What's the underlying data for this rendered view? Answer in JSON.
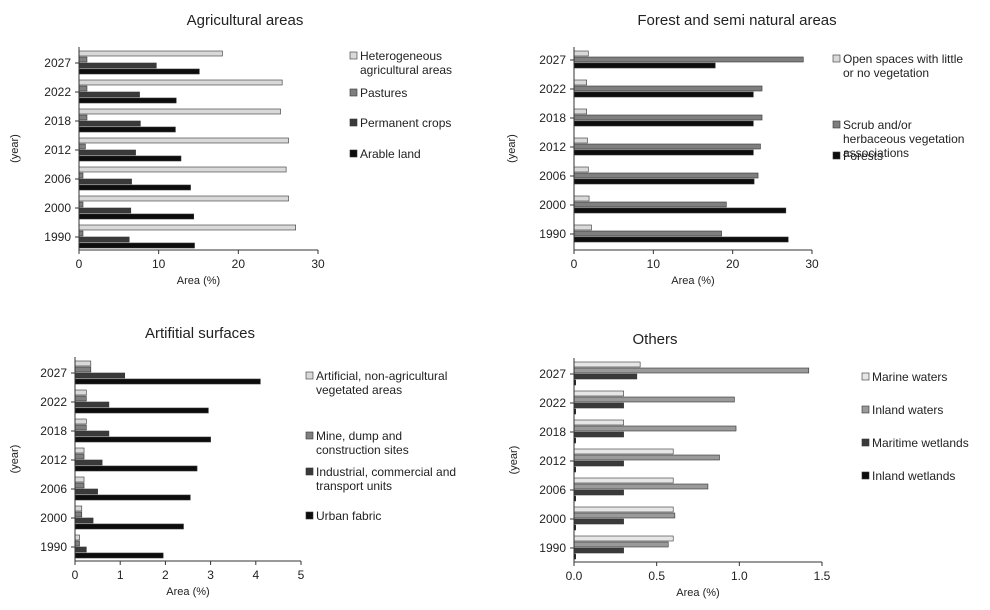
{
  "chart_data": [
    {
      "type": "bar",
      "orientation": "horizontal",
      "title": "Agricultural areas",
      "xlabel": "Area (%)",
      "ylabel": "(year)",
      "xlim": [
        0,
        30
      ],
      "xticks": [
        "0",
        "10",
        "20",
        "30"
      ],
      "categories": [
        "2027",
        "2022",
        "2018",
        "2012",
        "2006",
        "2000",
        "1990"
      ],
      "legend_position": "right",
      "grid": false,
      "series": [
        {
          "name": "Heterogeneous agricultural areas",
          "legend_lines": [
            "Heterogeneous",
            "agricultural areas"
          ],
          "color": "#d9d9d9",
          "values": [
            18.0,
            25.5,
            25.3,
            26.3,
            26.0,
            26.3,
            27.2
          ]
        },
        {
          "name": "Pastures",
          "legend_lines": [
            "Pastures"
          ],
          "color": "#7f7f7f",
          "values": [
            1.0,
            1.0,
            1.0,
            0.8,
            0.5,
            0.5,
            0.5
          ]
        },
        {
          "name": "Permanent crops",
          "legend_lines": [
            "Permanent crops"
          ],
          "color": "#3a3a3a",
          "values": [
            9.7,
            7.6,
            7.7,
            7.1,
            6.6,
            6.5,
            6.3
          ]
        },
        {
          "name": "Arable land",
          "legend_lines": [
            "Arable land"
          ],
          "color": "#0d0d0d",
          "values": [
            15.1,
            12.2,
            12.1,
            12.8,
            14.0,
            14.4,
            14.5
          ]
        }
      ]
    },
    {
      "type": "bar",
      "orientation": "horizontal",
      "title": "Forest and semi natural areas",
      "xlabel": "Area (%)",
      "ylabel": "(year)",
      "xlim": [
        0,
        30
      ],
      "xticks": [
        "0",
        "10",
        "20",
        "30"
      ],
      "categories": [
        "2027",
        "2022",
        "2018",
        "2012",
        "2006",
        "2000",
        "1990"
      ],
      "legend_position": "right",
      "grid": false,
      "series": [
        {
          "name": "Open spaces with little or no vegetation",
          "legend_lines": [
            "Open spaces with little",
            "or no vegetation"
          ],
          "color": "#d9d9d9",
          "values": [
            1.8,
            1.6,
            1.6,
            1.7,
            1.8,
            1.9,
            2.2
          ]
        },
        {
          "name": "Scrub and/or herbaceous vegetation associations",
          "legend_lines": [
            "Scrub and/or",
            "herbaceous vegetation",
            "associations"
          ],
          "color": "#7f7f7f",
          "values": [
            28.9,
            23.7,
            23.7,
            23.5,
            23.2,
            19.2,
            18.6
          ]
        },
        {
          "name": "Forests",
          "legend_lines": [
            "Forests"
          ],
          "color": "#0d0d0d",
          "values": [
            17.8,
            22.6,
            22.6,
            22.6,
            22.7,
            26.7,
            27.0
          ]
        }
      ]
    },
    {
      "type": "bar",
      "orientation": "horizontal",
      "title": "Artifitial surfaces",
      "xlabel": "Area (%)",
      "ylabel": "(year)",
      "xlim": [
        0,
        5
      ],
      "xticks": [
        "0",
        "1",
        "2",
        "3",
        "4",
        "5"
      ],
      "categories": [
        "2027",
        "2022",
        "2018",
        "2012",
        "2006",
        "2000",
        "1990"
      ],
      "legend_position": "right",
      "grid": false,
      "series": [
        {
          "name": "Artificial, non-agricultural vegetated areas",
          "legend_lines": [
            "Artificial, non-agricultural",
            "vegetated areas"
          ],
          "color": "#d9d9d9",
          "values": [
            0.35,
            0.25,
            0.25,
            0.2,
            0.2,
            0.15,
            0.1
          ]
        },
        {
          "name": "Mine, dump and construction sites",
          "legend_lines": [
            "Mine, dump and",
            "construction sites"
          ],
          "color": "#7f7f7f",
          "values": [
            0.35,
            0.25,
            0.25,
            0.2,
            0.2,
            0.15,
            0.1
          ]
        },
        {
          "name": "Industrial, commercial and transport units",
          "legend_lines": [
            "Industrial, commercial and",
            "transport units"
          ],
          "color": "#3a3a3a",
          "values": [
            1.1,
            0.75,
            0.75,
            0.6,
            0.5,
            0.4,
            0.25
          ]
        },
        {
          "name": "Urban fabric",
          "legend_lines": [
            "Urban fabric"
          ],
          "color": "#0d0d0d",
          "values": [
            4.1,
            2.95,
            3.0,
            2.7,
            2.55,
            2.4,
            1.95
          ]
        }
      ]
    },
    {
      "type": "bar",
      "orientation": "horizontal",
      "title": "Others",
      "xlabel": "Area (%)",
      "ylabel": "(year)",
      "xlim": [
        0,
        1.5
      ],
      "xticks": [
        "0.0",
        "0.5",
        "1.0",
        "1.5"
      ],
      "categories": [
        "2027",
        "2022",
        "2018",
        "2012",
        "2006",
        "2000",
        "1990"
      ],
      "legend_position": "right",
      "grid": false,
      "series": [
        {
          "name": "Marine waters",
          "legend_lines": [
            "Marine waters"
          ],
          "color": "#e6e6e6",
          "values": [
            0.4,
            0.3,
            0.3,
            0.6,
            0.6,
            0.6,
            0.6
          ]
        },
        {
          "name": "Inland waters",
          "legend_lines": [
            "Inland waters"
          ],
          "color": "#9a9a9a",
          "values": [
            1.42,
            0.97,
            0.98,
            0.88,
            0.81,
            0.61,
            0.57
          ]
        },
        {
          "name": "Maritime wetlands",
          "legend_lines": [
            "Maritime wetlands"
          ],
          "color": "#3a3a3a",
          "values": [
            0.38,
            0.3,
            0.3,
            0.3,
            0.3,
            0.3,
            0.3
          ]
        },
        {
          "name": "Inland wetlands",
          "legend_lines": [
            "Inland wetlands"
          ],
          "color": "#0d0d0d",
          "values": [
            0.01,
            0.01,
            0.01,
            0.01,
            0.01,
            0.01,
            0.01
          ]
        }
      ]
    }
  ]
}
